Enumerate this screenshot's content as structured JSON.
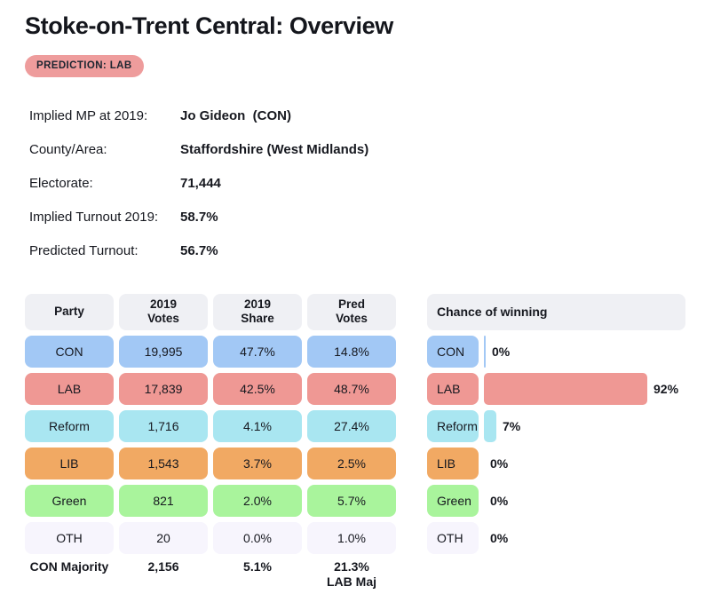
{
  "page": {
    "title": "Stoke-on-Trent Central: Overview",
    "prediction_badge": "PREDICTION: LAB"
  },
  "colors": {
    "con": "#a2c8f5",
    "lab": "#ef9894",
    "reform": "#a9e6f1",
    "lib": "#f1a963",
    "green": "#a9f49c",
    "oth": "#f7f5fd",
    "header_bg": "#eff0f4",
    "badge_bg": "#ee9c9c",
    "text": "#16181f"
  },
  "details": {
    "rows": [
      {
        "label": "Implied MP at 2019:",
        "value": "Jo Gideon  (CON)"
      },
      {
        "label": "County/Area:",
        "value": "Staffordshire (West Midlands)"
      },
      {
        "label": "Electorate:",
        "value": "71,444"
      },
      {
        "label": "Implied Turnout 2019:",
        "value": "58.7%"
      },
      {
        "label": "Predicted Turnout:",
        "value": "56.7%"
      }
    ]
  },
  "results_table": {
    "headers": [
      "Party",
      "2019\nVotes",
      "2019\nShare",
      "Pred\nVotes"
    ],
    "rows": [
      {
        "party": "CON",
        "votes_2019": "19,995",
        "share_2019": "47.7%",
        "pred_votes": "14.8%",
        "color": "#a2c8f5"
      },
      {
        "party": "LAB",
        "votes_2019": "17,839",
        "share_2019": "42.5%",
        "pred_votes": "48.7%",
        "color": "#ef9894"
      },
      {
        "party": "Reform",
        "votes_2019": "1,716",
        "share_2019": "4.1%",
        "pred_votes": "27.4%",
        "color": "#a9e6f1"
      },
      {
        "party": "LIB",
        "votes_2019": "1,543",
        "share_2019": "3.7%",
        "pred_votes": "2.5%",
        "color": "#f1a963"
      },
      {
        "party": "Green",
        "votes_2019": "821",
        "share_2019": "2.0%",
        "pred_votes": "5.7%",
        "color": "#a9f49c"
      },
      {
        "party": "OTH",
        "votes_2019": "20",
        "share_2019": "0.0%",
        "pred_votes": "1.0%",
        "color": "#f7f5fd"
      }
    ],
    "footer": {
      "label": "CON Majority",
      "votes": "2,156",
      "share": "5.1%",
      "pred": "21.3%\nLAB Maj"
    }
  },
  "chance_panel": {
    "title": "Chance of winning",
    "rows": [
      {
        "party": "CON",
        "pct": 0,
        "label": "0%",
        "has_bar": true,
        "color": "#a2c8f5"
      },
      {
        "party": "LAB",
        "pct": 92,
        "label": "92%",
        "has_bar": true,
        "color": "#ef9894"
      },
      {
        "party": "Reform",
        "pct": 7,
        "label": "7%",
        "has_bar": true,
        "color": "#a9e6f1"
      },
      {
        "party": "LIB",
        "pct": 0,
        "label": "0%",
        "has_bar": false,
        "color": "#f1a963"
      },
      {
        "party": "Green",
        "pct": 0,
        "label": "0%",
        "has_bar": false,
        "color": "#a9f49c"
      },
      {
        "party": "OTH",
        "pct": 0,
        "label": "0%",
        "has_bar": false,
        "color": "#f7f5fd"
      }
    ]
  },
  "chart_data": {
    "type": "bar",
    "title": "Chance of winning",
    "categories": [
      "CON",
      "LAB",
      "Reform",
      "LIB",
      "Green",
      "OTH"
    ],
    "values": [
      0,
      92,
      7,
      0,
      0,
      0
    ],
    "xlabel": "",
    "ylabel": "Chance of winning (%)",
    "xlim": [
      0,
      100
    ],
    "orientation": "horizontal",
    "grid": false,
    "legend": false,
    "bar_colors": [
      "#a2c8f5",
      "#ef9894",
      "#a9e6f1",
      "#f1a963",
      "#a9f49c",
      "#f7f5fd"
    ]
  }
}
